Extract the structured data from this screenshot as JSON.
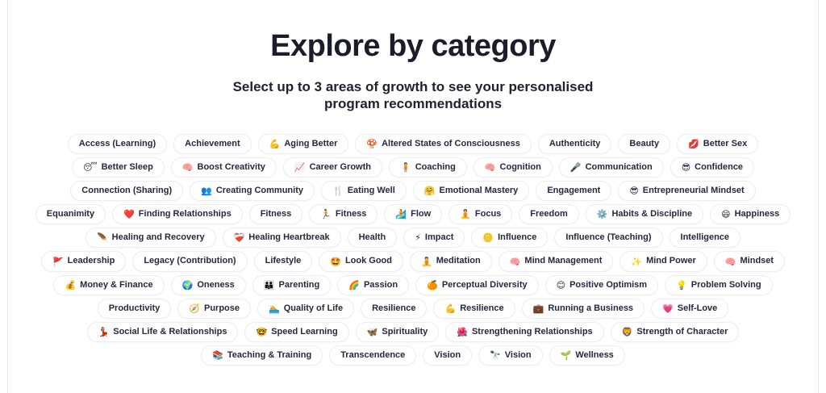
{
  "page": {
    "title": "Explore by category",
    "subtitle": "Select up to 3 areas of growth to see your personalised program recommendations"
  },
  "colors": {
    "heading_text": "#1c1c2b",
    "pill_text": "#27273d",
    "pill_border": "#ededf2",
    "pill_background": "#ffffff",
    "page_background": "#ffffff"
  },
  "category_rows": [
    [
      {
        "label": "Access (Learning)"
      },
      {
        "label": "Achievement"
      },
      {
        "icon": "💪",
        "icon_name": "flexed-arm-icon",
        "label": "Aging Better"
      },
      {
        "icon": "🍄",
        "icon_name": "mushroom-icon",
        "label": "Altered States of Consciousness"
      },
      {
        "label": "Authenticity"
      },
      {
        "label": "Beauty"
      },
      {
        "icon": "💋",
        "icon_name": "lips-icon",
        "label": "Better Sex"
      }
    ],
    [
      {
        "icon": "😴",
        "icon_name": "sleeping-face-icon",
        "label": "Better Sleep"
      },
      {
        "icon": "🧠",
        "icon_name": "brain-icon",
        "label": "Boost Creativity"
      },
      {
        "icon": "📈",
        "icon_name": "chart-increasing-icon",
        "label": "Career Growth"
      },
      {
        "icon": "🧍",
        "icon_name": "person-icon",
        "label": "Coaching"
      },
      {
        "icon": "🧠",
        "icon_name": "brain-icon",
        "label": "Cognition"
      },
      {
        "icon": "🎤",
        "icon_name": "microphone-icon",
        "label": "Communication"
      },
      {
        "icon": "😎",
        "icon_name": "sunglasses-face-icon",
        "label": "Confidence"
      }
    ],
    [
      {
        "label": "Connection (Sharing)"
      },
      {
        "icon": "👥",
        "icon_name": "people-icon",
        "label": "Creating Community"
      },
      {
        "icon": "🍴",
        "icon_name": "fork-knife-icon",
        "label": "Eating Well"
      },
      {
        "icon": "🤗",
        "icon_name": "hugging-face-icon",
        "label": "Emotional Mastery"
      },
      {
        "label": "Engagement"
      },
      {
        "icon": "😎",
        "icon_name": "sunglasses-face-icon",
        "label": "Entrepreneurial Mindset"
      }
    ],
    [
      {
        "label": "Equanimity"
      },
      {
        "icon": "❤️",
        "icon_name": "heart-icon",
        "label": "Finding Relationships"
      },
      {
        "label": "Fitness"
      },
      {
        "icon": "🏃",
        "icon_name": "runner-icon",
        "label": "Fitness"
      },
      {
        "icon": "🏄",
        "icon_name": "surfer-icon",
        "label": "Flow"
      },
      {
        "icon": "🧘",
        "icon_name": "lotus-icon",
        "label": "Focus"
      },
      {
        "label": "Freedom"
      },
      {
        "icon": "⚙️",
        "icon_name": "gear-icon",
        "label": "Habits & Discipline"
      },
      {
        "icon": "😄",
        "icon_name": "grinning-face-icon",
        "label": "Happiness"
      }
    ],
    [
      {
        "icon": "🪶",
        "icon_name": "feather-icon",
        "label": "Healing and Recovery"
      },
      {
        "icon": "❤️‍🩹",
        "icon_name": "mending-heart-icon",
        "label": "Healing Heartbreak"
      },
      {
        "label": "Health"
      },
      {
        "icon": "⚡",
        "icon_name": "lightning-icon",
        "label": "Impact"
      },
      {
        "icon": "🪙",
        "icon_name": "coin-icon",
        "label": "Influence"
      },
      {
        "label": "Influence (Teaching)"
      },
      {
        "label": "Intelligence"
      }
    ],
    [
      {
        "icon": "🚩",
        "icon_name": "flag-icon",
        "label": "Leadership"
      },
      {
        "label": "Legacy (Contribution)"
      },
      {
        "label": "Lifestyle"
      },
      {
        "icon": "🤩",
        "icon_name": "star-struck-face-icon",
        "label": "Look Good"
      },
      {
        "icon": "🧘",
        "icon_name": "lotus-icon",
        "label": "Meditation"
      },
      {
        "icon": "🧠",
        "icon_name": "brain-icon",
        "label": "Mind Management"
      },
      {
        "icon": "✨",
        "icon_name": "sparkles-icon",
        "label": "Mind Power"
      },
      {
        "icon": "🧠",
        "icon_name": "brain-icon",
        "label": "Mindset"
      }
    ],
    [
      {
        "icon": "💰",
        "icon_name": "money-bag-icon",
        "label": "Money & Finance"
      },
      {
        "icon": "🌍",
        "icon_name": "globe-icon",
        "label": "Oneness"
      },
      {
        "icon": "👪",
        "icon_name": "family-icon",
        "label": "Parenting"
      },
      {
        "icon": "🌈",
        "icon_name": "rainbow-icon",
        "label": "Passion"
      },
      {
        "icon": "🍊",
        "icon_name": "orange-icon",
        "label": "Perceptual Diversity"
      },
      {
        "icon": "😊",
        "icon_name": "smiling-face-icon",
        "label": "Positive Optimism"
      },
      {
        "icon": "💡",
        "icon_name": "lightbulb-icon",
        "label": "Problem Solving"
      }
    ],
    [
      {
        "label": "Productivity"
      },
      {
        "icon": "🧭",
        "icon_name": "compass-icon",
        "label": "Purpose"
      },
      {
        "icon": "🏊",
        "icon_name": "swimmer-icon",
        "label": "Quality of Life"
      },
      {
        "label": "Resilience"
      },
      {
        "icon": "💪",
        "icon_name": "flexed-arm-icon",
        "label": "Resilience"
      },
      {
        "icon": "💼",
        "icon_name": "briefcase-icon",
        "label": "Running a Business"
      },
      {
        "icon": "💗",
        "icon_name": "pink-heart-icon",
        "label": "Self-Love"
      }
    ],
    [
      {
        "icon": "💃",
        "icon_name": "dancer-icon",
        "label": "Social Life & Relationships"
      },
      {
        "icon": "🤓",
        "icon_name": "nerd-face-icon",
        "label": "Speed Learning"
      },
      {
        "icon": "🦋",
        "icon_name": "butterfly-icon",
        "label": "Spirituality"
      },
      {
        "icon": "🌺",
        "icon_name": "hibiscus-icon",
        "label": "Strengthening Relationships"
      },
      {
        "icon": "🦁",
        "icon_name": "lion-icon",
        "label": "Strength of Character"
      }
    ],
    [
      {
        "icon": "📚",
        "icon_name": "books-icon",
        "label": "Teaching & Training"
      },
      {
        "label": "Transcendence"
      },
      {
        "label": "Vision"
      },
      {
        "icon": "🔭",
        "icon_name": "telescope-icon",
        "label": "Vision"
      },
      {
        "icon": "🌱",
        "icon_name": "seedling-icon",
        "label": "Wellness"
      }
    ]
  ]
}
